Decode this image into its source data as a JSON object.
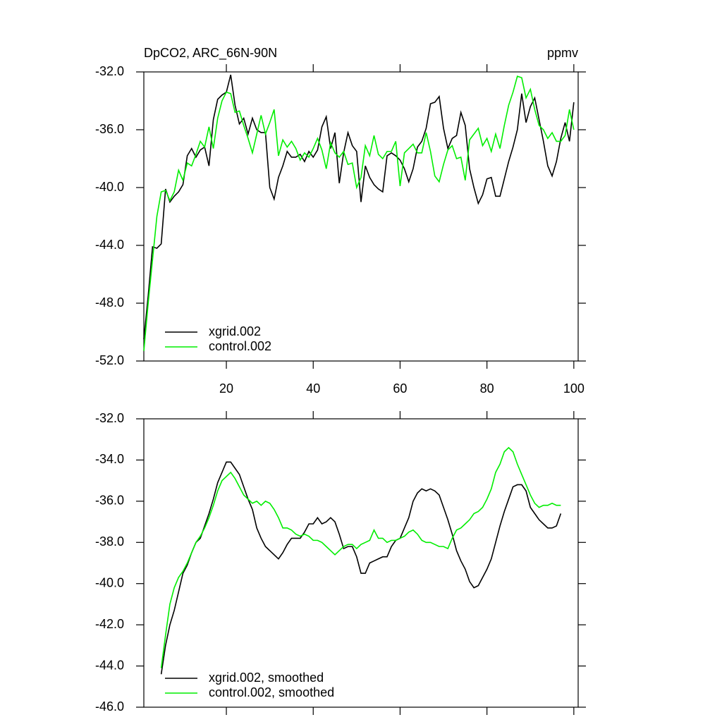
{
  "chart_data": [
    {
      "type": "line",
      "title": "DpCO2, ARC_66N-90N",
      "units_label": "ppmv",
      "x": [
        1,
        2,
        3,
        4,
        5,
        6,
        7,
        8,
        9,
        10,
        11,
        12,
        13,
        14,
        15,
        16,
        17,
        18,
        19,
        20,
        21,
        22,
        23,
        24,
        25,
        26,
        27,
        28,
        29,
        30,
        31,
        32,
        33,
        34,
        35,
        36,
        37,
        38,
        39,
        40,
        41,
        42,
        43,
        44,
        45,
        46,
        47,
        48,
        49,
        50,
        51,
        52,
        53,
        54,
        55,
        56,
        57,
        58,
        59,
        60,
        61,
        62,
        63,
        64,
        65,
        66,
        67,
        68,
        69,
        70,
        71,
        72,
        73,
        74,
        75,
        76,
        77,
        78,
        79,
        80,
        81,
        82,
        83,
        84,
        85,
        86,
        87,
        88,
        89,
        90,
        91,
        92,
        93,
        94,
        95,
        96,
        97,
        98,
        99,
        100
      ],
      "series": [
        {
          "name": "xgrid.002",
          "color": "#000000",
          "values": [
            -50.5,
            -47.5,
            -44.1,
            -44.2,
            -43.9,
            -40.1,
            -41.0,
            -40.6,
            -40.3,
            -39.8,
            -37.8,
            -37.3,
            -37.9,
            -37.4,
            -37.2,
            -38.5,
            -35.3,
            -33.9,
            -33.6,
            -33.4,
            -32.2,
            -34.3,
            -35.6,
            -35.2,
            -36.3,
            -35.2,
            -36.0,
            -36.2,
            -36.2,
            -40.0,
            -40.8,
            -39.3,
            -38.5,
            -37.5,
            -37.9,
            -37.9,
            -37.7,
            -38.2,
            -37.5,
            -37.9,
            -37.4,
            -35.8,
            -35.1,
            -37.3,
            -36.2,
            -39.7,
            -37.6,
            -36.2,
            -37.1,
            -37.5,
            -41.0,
            -38.5,
            -39.3,
            -39.8,
            -40.1,
            -40.3,
            -37.8,
            -37.6,
            -37.8,
            -38.1,
            -38.7,
            -39.6,
            -38.7,
            -37.2,
            -36.8,
            -35.9,
            -34.2,
            -34.1,
            -33.7,
            -35.9,
            -37.3,
            -36.6,
            -36.4,
            -34.8,
            -35.7,
            -38.7,
            -40.0,
            -41.1,
            -40.5,
            -39.4,
            -39.3,
            -40.6,
            -40.6,
            -39.4,
            -38.2,
            -37.2,
            -36.0,
            -33.5,
            -35.5,
            -34.4,
            -33.8,
            -35.3,
            -36.8,
            -38.5,
            -39.2,
            -38.2,
            -36.6,
            -35.5,
            -36.8,
            -34.1
          ]
        },
        {
          "name": "control.002",
          "color": "#00ee00",
          "values": [
            -51.3,
            -48.0,
            -45.0,
            -42.0,
            -40.3,
            -40.2,
            -40.9,
            -40.3,
            -38.8,
            -39.5,
            -38.3,
            -38.5,
            -37.7,
            -36.8,
            -37.2,
            -35.8,
            -37.3,
            -35.2,
            -34.0,
            -33.4,
            -33.5,
            -34.8,
            -34.7,
            -35.7,
            -36.6,
            -37.6,
            -36.3,
            -35.0,
            -36.3,
            -35.5,
            -34.6,
            -37.8,
            -36.7,
            -37.2,
            -36.8,
            -37.3,
            -38.1,
            -37.6,
            -37.9,
            -37.3,
            -36.6,
            -37.4,
            -38.7,
            -36.9,
            -37.6,
            -37.9,
            -37.5,
            -38.4,
            -38.3,
            -40.0,
            -39.3,
            -37.1,
            -37.8,
            -36.4,
            -37.7,
            -38.0,
            -37.5,
            -37.5,
            -36.8,
            -39.9,
            -37.6,
            -37.3,
            -37.0,
            -37.6,
            -37.6,
            -36.2,
            -37.5,
            -39.2,
            -39.6,
            -38.4,
            -37.4,
            -37.1,
            -38.0,
            -37.9,
            -39.5,
            -36.7,
            -36.3,
            -35.9,
            -37.1,
            -36.6,
            -37.5,
            -36.3,
            -37.3,
            -35.7,
            -34.3,
            -33.4,
            -32.3,
            -32.4,
            -33.8,
            -33.2,
            -34.6,
            -35.7,
            -36.0,
            -36.6,
            -36.2,
            -36.8,
            -36.8,
            -36.4,
            -34.6,
            -36.0
          ]
        }
      ],
      "xlim": [
        1,
        101
      ],
      "xticks": [
        20,
        40,
        60,
        80,
        100
      ],
      "ylim": [
        -52,
        -32
      ],
      "yticks": [
        {
          "value": -52,
          "label": "-52.0"
        },
        {
          "value": -48,
          "label": "-48.0"
        },
        {
          "value": -44,
          "label": "-44.0"
        },
        {
          "value": -40,
          "label": "-40.0"
        },
        {
          "value": -36,
          "label": "-36.0"
        },
        {
          "value": -32,
          "label": "-32.0"
        }
      ],
      "legend": "lower left"
    },
    {
      "type": "line",
      "x": [
        5,
        6,
        7,
        8,
        9,
        10,
        11,
        12,
        13,
        14,
        15,
        16,
        17,
        18,
        19,
        20,
        21,
        22,
        23,
        24,
        25,
        26,
        27,
        28,
        29,
        30,
        31,
        32,
        33,
        34,
        35,
        36,
        37,
        38,
        39,
        40,
        41,
        42,
        43,
        44,
        45,
        46,
        47,
        48,
        49,
        50,
        51,
        52,
        53,
        54,
        55,
        56,
        57,
        58,
        59,
        60,
        61,
        62,
        63,
        64,
        65,
        66,
        67,
        68,
        69,
        70,
        71,
        72,
        73,
        74,
        75,
        76,
        77,
        78,
        79,
        80,
        81,
        82,
        83,
        84,
        85,
        86,
        87,
        88,
        89,
        90,
        91,
        92,
        93,
        94,
        95,
        96,
        97
      ],
      "series": [
        {
          "name": "xgrid.002, smoothed",
          "color": "#000000",
          "values": [
            -44.4,
            -43.0,
            -42.0,
            -41.3,
            -40.4,
            -39.5,
            -39.1,
            -38.5,
            -38.0,
            -37.8,
            -37.2,
            -36.6,
            -35.9,
            -35.1,
            -34.6,
            -34.1,
            -34.1,
            -34.4,
            -34.7,
            -35.3,
            -35.9,
            -36.4,
            -37.3,
            -37.8,
            -38.2,
            -38.4,
            -38.6,
            -38.8,
            -38.5,
            -38.1,
            -37.8,
            -37.8,
            -37.8,
            -37.5,
            -37.1,
            -37.1,
            -36.8,
            -37.1,
            -37.0,
            -36.8,
            -37.0,
            -37.6,
            -38.3,
            -38.2,
            -38.2,
            -38.7,
            -39.5,
            -39.5,
            -39.0,
            -38.9,
            -38.8,
            -38.7,
            -38.7,
            -38.2,
            -37.9,
            -37.8,
            -37.3,
            -36.8,
            -36.0,
            -35.6,
            -35.4,
            -35.5,
            -35.4,
            -35.5,
            -35.7,
            -36.3,
            -36.9,
            -37.6,
            -38.4,
            -38.9,
            -39.3,
            -39.9,
            -40.2,
            -40.1,
            -39.7,
            -39.3,
            -38.8,
            -38.0,
            -37.2,
            -36.5,
            -35.9,
            -35.3,
            -35.2,
            -35.2,
            -35.5,
            -36.3,
            -36.6,
            -36.9,
            -37.1,
            -37.3,
            -37.3,
            -37.2,
            -36.6
          ]
        },
        {
          "name": "control.002, smoothed",
          "color": "#00ee00",
          "values": [
            -44.1,
            -42.5,
            -41.0,
            -40.2,
            -39.7,
            -39.4,
            -39.0,
            -38.5,
            -38.0,
            -37.7,
            -37.3,
            -36.8,
            -36.2,
            -35.5,
            -35.0,
            -34.8,
            -34.6,
            -34.9,
            -35.3,
            -35.7,
            -35.9,
            -36.1,
            -36.0,
            -36.2,
            -36.0,
            -36.1,
            -36.4,
            -36.8,
            -37.3,
            -37.3,
            -37.4,
            -37.6,
            -37.7,
            -37.6,
            -37.7,
            -37.9,
            -37.9,
            -38.0,
            -38.2,
            -38.4,
            -38.6,
            -38.4,
            -38.2,
            -38.1,
            -38.1,
            -38.3,
            -38.1,
            -38.0,
            -37.9,
            -37.4,
            -37.8,
            -37.8,
            -38.0,
            -37.9,
            -37.9,
            -37.8,
            -37.7,
            -37.5,
            -37.4,
            -37.6,
            -37.9,
            -38.0,
            -38.0,
            -38.1,
            -38.2,
            -38.2,
            -38.3,
            -37.8,
            -37.4,
            -37.3,
            -37.1,
            -36.9,
            -36.6,
            -36.5,
            -36.3,
            -35.9,
            -35.4,
            -34.6,
            -34.2,
            -33.6,
            -33.4,
            -33.6,
            -34.2,
            -34.7,
            -35.2,
            -35.7,
            -36.1,
            -36.3,
            -36.2,
            -36.2,
            -36.1,
            -36.2,
            -36.2
          ]
        }
      ],
      "xlim": [
        1,
        101
      ],
      "xticks": [
        20,
        40,
        60,
        80,
        100
      ],
      "ylim": [
        -46,
        -32
      ],
      "yticks": [
        {
          "value": -46,
          "label": "-46.0"
        },
        {
          "value": -44,
          "label": "-44.0"
        },
        {
          "value": -42,
          "label": "-42.0"
        },
        {
          "value": -40,
          "label": "-40.0"
        },
        {
          "value": -38,
          "label": "-38.0"
        },
        {
          "value": -36,
          "label": "-36.0"
        },
        {
          "value": -34,
          "label": "-34.0"
        },
        {
          "value": -32,
          "label": "-32.0"
        }
      ],
      "legend": "lower left"
    }
  ]
}
